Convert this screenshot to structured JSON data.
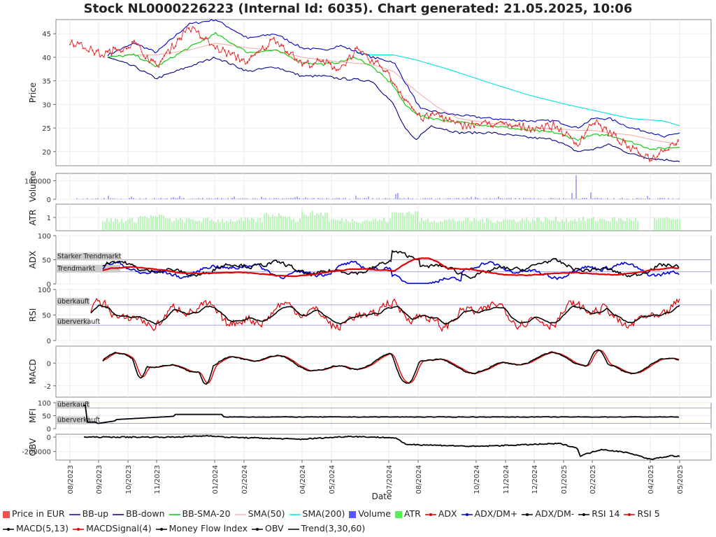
{
  "title": "Stock NL0000226223 (Internal Id: 6035). Chart generated: 21.05.2025, 10:06",
  "chart_data": {
    "type": "line",
    "xlabel": "Date",
    "x_ticks": [
      "08/2023",
      "09/2023",
      "10/2023",
      "11/2023",
      "01/2024",
      "02/2024",
      "04/2024",
      "05/2024",
      "07/2024",
      "08/2024",
      "10/2024",
      "11/2024",
      "12/2024",
      "01/2025",
      "02/2025",
      "04/2025",
      "05/2025"
    ],
    "panels": [
      {
        "name": "price",
        "ylabel": "Price",
        "ylim": [
          17,
          48
        ],
        "yticks": [
          20,
          25,
          30,
          35,
          40,
          45
        ],
        "series": [
          "Price in EUR",
          "BB-up",
          "BB-down",
          "BB-SMA-20",
          "SMA(50)",
          "SMA(200)"
        ],
        "key_points": {
          "Price in EUR": [
            [
              0.0,
              43.5
            ],
            [
              0.06,
              40.5
            ],
            [
              0.12,
              43
            ],
            [
              0.16,
              38
            ],
            [
              0.22,
              46.5
            ],
            [
              0.27,
              42
            ],
            [
              0.33,
              39
            ],
            [
              0.38,
              44
            ],
            [
              0.43,
              38.5
            ],
            [
              0.47,
              39
            ],
            [
              0.5,
              37.5
            ],
            [
              0.53,
              41.5
            ],
            [
              0.56,
              39
            ],
            [
              0.58,
              38
            ],
            [
              0.61,
              33
            ],
            [
              0.63,
              30
            ],
            [
              0.65,
              27
            ],
            [
              0.68,
              28
            ],
            [
              0.72,
              25.5
            ],
            [
              0.78,
              26
            ],
            [
              0.85,
              25
            ],
            [
              0.9,
              25.5
            ],
            [
              0.94,
              21.5
            ],
            [
              0.97,
              26.5
            ],
            [
              1.0,
              24
            ],
            [
              1.04,
              20.5
            ],
            [
              1.08,
              18.5
            ],
            [
              1.1,
              20.5
            ],
            [
              1.13,
              22.5
            ]
          ],
          "BB-up": [
            [
              0.07,
              40.5
            ],
            [
              0.12,
              43
            ],
            [
              0.16,
              41
            ],
            [
              0.22,
              47
            ],
            [
              0.27,
              48
            ],
            [
              0.33,
              44
            ],
            [
              0.38,
              45
            ],
            [
              0.43,
              42
            ],
            [
              0.47,
              41.5
            ],
            [
              0.5,
              42.5
            ],
            [
              0.56,
              40
            ],
            [
              0.6,
              39
            ],
            [
              0.62,
              35
            ],
            [
              0.65,
              29
            ],
            [
              0.7,
              28
            ],
            [
              0.78,
              27
            ],
            [
              0.85,
              26.5
            ],
            [
              0.9,
              26.5
            ],
            [
              0.94,
              25
            ],
            [
              0.97,
              27
            ],
            [
              1.0,
              27
            ],
            [
              1.04,
              25
            ],
            [
              1.08,
              24
            ],
            [
              1.1,
              23
            ],
            [
              1.13,
              24
            ]
          ],
          "BB-down": [
            [
              0.07,
              40
            ],
            [
              0.12,
              38
            ],
            [
              0.16,
              35.5
            ],
            [
              0.22,
              38
            ],
            [
              0.27,
              40
            ],
            [
              0.33,
              37
            ],
            [
              0.38,
              38
            ],
            [
              0.43,
              36
            ],
            [
              0.47,
              36
            ],
            [
              0.5,
              35.5
            ],
            [
              0.56,
              35
            ],
            [
              0.6,
              30
            ],
            [
              0.62,
              25
            ],
            [
              0.64,
              22.5
            ],
            [
              0.67,
              25.5
            ],
            [
              0.72,
              24
            ],
            [
              0.78,
              24
            ],
            [
              0.85,
              23
            ],
            [
              0.9,
              22.5
            ],
            [
              0.94,
              20
            ],
            [
              0.97,
              20.5
            ],
            [
              1.0,
              21.5
            ],
            [
              1.04,
              19.5
            ],
            [
              1.08,
              18.5
            ],
            [
              1.13,
              18
            ]
          ],
          "BB-SMA-20": [
            [
              0.07,
              40
            ],
            [
              0.12,
              40.5
            ],
            [
              0.16,
              38
            ],
            [
              0.22,
              42
            ],
            [
              0.27,
              45
            ],
            [
              0.33,
              41
            ],
            [
              0.38,
              41.5
            ],
            [
              0.43,
              39
            ],
            [
              0.47,
              38.5
            ],
            [
              0.5,
              39
            ],
            [
              0.53,
              40
            ],
            [
              0.56,
              38
            ],
            [
              0.6,
              34
            ],
            [
              0.62,
              30
            ],
            [
              0.65,
              27.5
            ],
            [
              0.7,
              26.5
            ],
            [
              0.78,
              25.5
            ],
            [
              0.85,
              24.5
            ],
            [
              0.9,
              24
            ],
            [
              0.94,
              22.5
            ],
            [
              0.97,
              23.5
            ],
            [
              1.0,
              23.5
            ],
            [
              1.04,
              22
            ],
            [
              1.08,
              20.5
            ],
            [
              1.13,
              21
            ]
          ],
          "SMA(50)": [
            [
              0.1,
              40.5
            ],
            [
              0.16,
              40.5
            ],
            [
              0.22,
              41.5
            ],
            [
              0.27,
              43
            ],
            [
              0.33,
              42
            ],
            [
              0.38,
              41.5
            ],
            [
              0.43,
              40
            ],
            [
              0.5,
              39
            ],
            [
              0.56,
              38.5
            ],
            [
              0.6,
              37
            ],
            [
              0.64,
              33
            ],
            [
              0.68,
              29.5
            ],
            [
              0.72,
              27
            ],
            [
              0.78,
              26
            ],
            [
              0.85,
              25
            ],
            [
              0.9,
              24.8
            ],
            [
              0.94,
              24.5
            ],
            [
              0.97,
              24.5
            ],
            [
              1.0,
              24
            ],
            [
              1.04,
              23.5
            ],
            [
              1.08,
              22.5
            ],
            [
              1.13,
              21.5
            ]
          ],
          "SMA(200)": [
            [
              0.53,
              41
            ],
            [
              0.56,
              40.5
            ],
            [
              0.6,
              40.5
            ],
            [
              0.64,
              39.5
            ],
            [
              0.7,
              37.5
            ],
            [
              0.78,
              34.5
            ],
            [
              0.85,
              32
            ],
            [
              0.92,
              30
            ],
            [
              0.98,
              28.5
            ],
            [
              1.04,
              27
            ],
            [
              1.1,
              26.5
            ],
            [
              1.13,
              25.5
            ]
          ]
        }
      },
      {
        "name": "volume",
        "ylabel": "Volume",
        "ylim": [
          0,
          140000
        ],
        "yticks": [
          0,
          100000
        ],
        "series": [
          "Volume"
        ],
        "peak": 130000
      },
      {
        "name": "atr",
        "ylabel": "ATR",
        "ylim": [
          0,
          2
        ],
        "yticks": [
          1
        ],
        "series": [
          "ATR"
        ]
      },
      {
        "name": "adx",
        "ylabel": "ADX",
        "ylim": [
          0,
          100
        ],
        "yticks": [
          0,
          50,
          100
        ],
        "series": [
          "ADX",
          "ADX/DM+",
          "ADX/DM-"
        ],
        "reference_lines": [
          {
            "label": "Starker Trendmarkt",
            "value": 50
          },
          {
            "label": "Trendmarkt",
            "value": 25
          }
        ]
      },
      {
        "name": "rsi",
        "ylabel": "RSI",
        "ylim": [
          0,
          100
        ],
        "yticks": [
          0,
          50,
          100
        ],
        "series": [
          "RSI 14",
          "RSI 5"
        ],
        "reference_lines": [
          {
            "label": "überkauft",
            "value": 70
          },
          {
            "label": "überverkauft",
            "value": 30
          }
        ]
      },
      {
        "name": "macd",
        "ylabel": "MACD",
        "ylim": [
          -3,
          1.5
        ],
        "yticks": [
          -2,
          0
        ],
        "series": [
          "MACD(5,13)",
          "MACDSignal(4)"
        ]
      },
      {
        "name": "mfi",
        "ylabel": "MFI",
        "ylim": [
          0,
          100
        ],
        "yticks": [
          0,
          50,
          100
        ],
        "series": [
          "Money Flow Index"
        ],
        "reference_lines": [
          {
            "label": "überkauft",
            "value": 80
          },
          {
            "label": "überverkauft",
            "value": 20
          }
        ]
      },
      {
        "name": "obv",
        "ylabel": "OBV",
        "ylim": [
          -320000,
          40000
        ],
        "yticks": [
          0,
          -200000
        ],
        "series": [
          "OBV",
          "Trend(3,30,60)"
        ]
      }
    ]
  },
  "legend": [
    {
      "label": "Price in EUR",
      "color": "#f05050",
      "kind": "box"
    },
    {
      "label": "BB-up",
      "color": "#0000cc",
      "kind": "line"
    },
    {
      "label": "BB-down",
      "color": "#000080",
      "kind": "line"
    },
    {
      "label": "BB-SMA-20",
      "color": "#00cc00",
      "kind": "line"
    },
    {
      "label": "SMA(50)",
      "color": "#f0b0b0",
      "kind": "line"
    },
    {
      "label": "SMA(200)",
      "color": "#00e0e0",
      "kind": "line"
    },
    {
      "label": "Volume",
      "color": "#5555ff",
      "kind": "box"
    },
    {
      "label": "ATR",
      "color": "#55ee55",
      "kind": "box"
    },
    {
      "label": "ADX",
      "color": "#e00000",
      "kind": "marker"
    },
    {
      "label": "ADX/DM+",
      "color": "#0000dd",
      "kind": "marker"
    },
    {
      "label": "ADX/DM-",
      "color": "#000000",
      "kind": "marker"
    },
    {
      "label": "RSI 14",
      "color": "#000000",
      "kind": "marker"
    },
    {
      "label": "RSI 5",
      "color": "#e00000",
      "kind": "marker"
    },
    {
      "label": "MACD(5,13)",
      "color": "#000000",
      "kind": "marker"
    },
    {
      "label": "MACDSignal(4)",
      "color": "#e00000",
      "kind": "marker"
    },
    {
      "label": "Money Flow Index",
      "color": "#000000",
      "kind": "marker"
    },
    {
      "label": "OBV",
      "color": "#000000",
      "kind": "marker"
    },
    {
      "label": "Trend(3,30,60)",
      "color": "#000000",
      "kind": "line"
    }
  ]
}
